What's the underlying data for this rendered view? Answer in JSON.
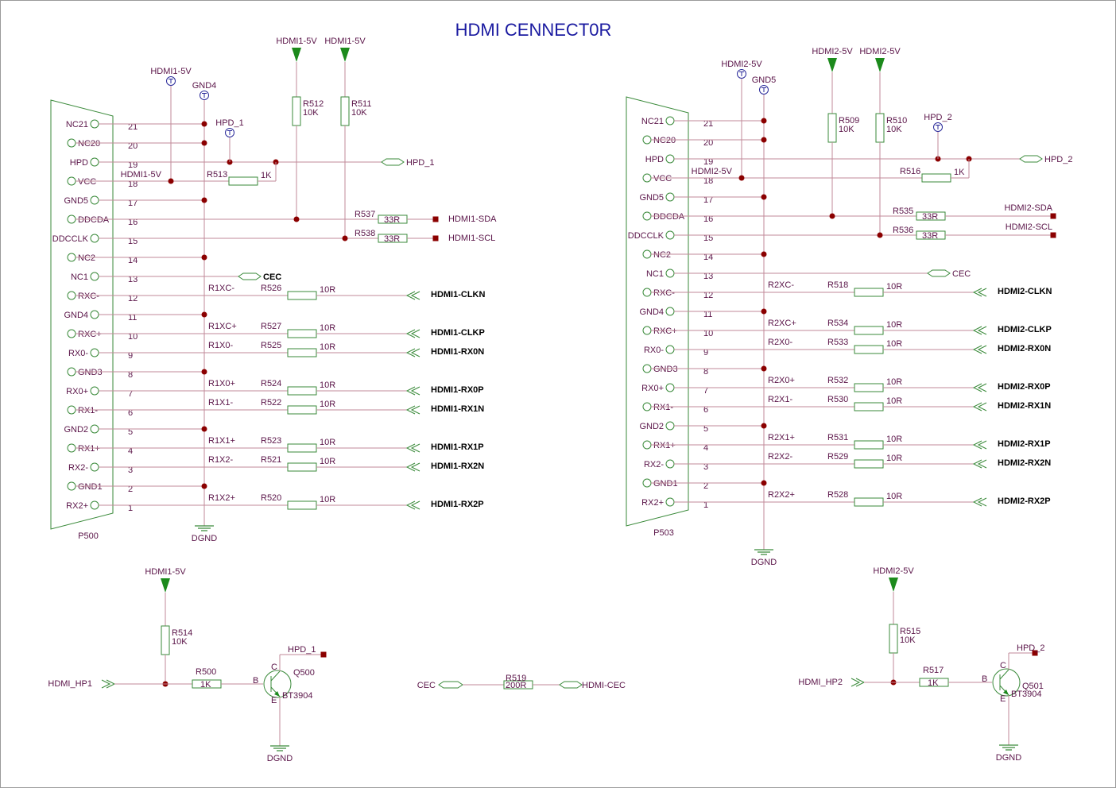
{
  "title": "HDMI CENNECT0R",
  "conn1": {
    "name": "P500",
    "pins": [
      {
        "num": "21",
        "label": "NC21",
        "net": ""
      },
      {
        "num": "20",
        "label": "NC20",
        "net": ""
      },
      {
        "num": "19",
        "label": "HPD",
        "net": ""
      },
      {
        "num": "18",
        "label": "VCC",
        "net": "HDMI1-5V"
      },
      {
        "num": "17",
        "label": "GND5",
        "net": ""
      },
      {
        "num": "16",
        "label": "DDCDA",
        "net": ""
      },
      {
        "num": "15",
        "label": "DDCCLK",
        "net": ""
      },
      {
        "num": "14",
        "label": "NC2",
        "net": ""
      },
      {
        "num": "13",
        "label": "NC1",
        "net": ""
      },
      {
        "num": "12",
        "label": "RXC-",
        "net": "R1XC-"
      },
      {
        "num": "11",
        "label": "GND4",
        "net": ""
      },
      {
        "num": "10",
        "label": "RXC+",
        "net": "R1XC+"
      },
      {
        "num": "9",
        "label": "RX0-",
        "net": "R1X0-"
      },
      {
        "num": "8",
        "label": "GND3",
        "net": ""
      },
      {
        "num": "7",
        "label": "RX0+",
        "net": "R1X0+"
      },
      {
        "num": "6",
        "label": "RX1-",
        "net": "R1X1-"
      },
      {
        "num": "5",
        "label": "GND2",
        "net": ""
      },
      {
        "num": "4",
        "label": "RX1+",
        "net": "R1X1+"
      },
      {
        "num": "3",
        "label": "RX2-",
        "net": "R1X2-"
      },
      {
        "num": "2",
        "label": "GND1",
        "net": ""
      },
      {
        "num": "1",
        "label": "RX2+",
        "net": "R1X2+"
      }
    ],
    "series": [
      {
        "ref": "R526",
        "val": "10R",
        "sig": "HDMI1-CLKN"
      },
      {
        "ref": "R527",
        "val": "10R",
        "sig": "HDMI1-CLKP"
      },
      {
        "ref": "R525",
        "val": "10R",
        "sig": "HDMI1-RX0N"
      },
      {
        "ref": "R524",
        "val": "10R",
        "sig": "HDMI1-RX0P"
      },
      {
        "ref": "R522",
        "val": "10R",
        "sig": "HDMI1-RX1N"
      },
      {
        "ref": "R523",
        "val": "10R",
        "sig": "HDMI1-RX1P"
      },
      {
        "ref": "R521",
        "val": "10R",
        "sig": "HDMI1-RX2N"
      },
      {
        "ref": "R520",
        "val": "10R",
        "sig": "HDMI1-RX2P"
      }
    ],
    "pwr_a": "HDMI1-5V",
    "pwr_b": "HDMI1-5V",
    "pwr_tp": "HDMI1-5V",
    "gnd_tp": "GND4",
    "hpd_tp": "HPD_1",
    "r_pull_a": {
      "ref": "R512",
      "val": "10K"
    },
    "r_pull_b": {
      "ref": "R511",
      "val": "10K"
    },
    "r_hpd": {
      "ref": "R513",
      "val": "1K"
    },
    "r_sda": {
      "ref": "R537",
      "val": "33R",
      "sig": "HDMI1-SDA"
    },
    "r_scl": {
      "ref": "R538",
      "val": "33R",
      "sig": "HDMI1-SCL"
    },
    "hpd_out": "HPD_1",
    "cec": "CEC",
    "dgnd": "DGND"
  },
  "conn2": {
    "name": "P503",
    "pins": [
      {
        "num": "21",
        "label": "NC21",
        "net": ""
      },
      {
        "num": "20",
        "label": "NC20",
        "net": ""
      },
      {
        "num": "19",
        "label": "HPD",
        "net": ""
      },
      {
        "num": "18",
        "label": "VCC",
        "net": "HDMI2-5V"
      },
      {
        "num": "17",
        "label": "GND5",
        "net": ""
      },
      {
        "num": "16",
        "label": "DDCDA",
        "net": ""
      },
      {
        "num": "15",
        "label": "DDCCLK",
        "net": ""
      },
      {
        "num": "14",
        "label": "NC2",
        "net": ""
      },
      {
        "num": "13",
        "label": "NC1",
        "net": ""
      },
      {
        "num": "12",
        "label": "RXC-",
        "net": "R2XC-"
      },
      {
        "num": "11",
        "label": "GND4",
        "net": ""
      },
      {
        "num": "10",
        "label": "RXC+",
        "net": "R2XC+"
      },
      {
        "num": "9",
        "label": "RX0-",
        "net": "R2X0-"
      },
      {
        "num": "8",
        "label": "GND3",
        "net": ""
      },
      {
        "num": "7",
        "label": "RX0+",
        "net": "R2X0+"
      },
      {
        "num": "6",
        "label": "RX1-",
        "net": "R2X1-"
      },
      {
        "num": "5",
        "label": "GND2",
        "net": ""
      },
      {
        "num": "4",
        "label": "RX1+",
        "net": "R2X1+"
      },
      {
        "num": "3",
        "label": "RX2-",
        "net": "R2X2-"
      },
      {
        "num": "2",
        "label": "GND1",
        "net": ""
      },
      {
        "num": "1",
        "label": "RX2+",
        "net": "R2X2+"
      }
    ],
    "series": [
      {
        "ref": "R518",
        "val": "10R",
        "sig": "HDMI2-CLKN"
      },
      {
        "ref": "R534",
        "val": "10R",
        "sig": "HDMI2-CLKP"
      },
      {
        "ref": "R533",
        "val": "10R",
        "sig": "HDMI2-RX0N"
      },
      {
        "ref": "R532",
        "val": "10R",
        "sig": "HDMI2-RX0P"
      },
      {
        "ref": "R530",
        "val": "10R",
        "sig": "HDMI2-RX1N"
      },
      {
        "ref": "R531",
        "val": "10R",
        "sig": "HDMI2-RX1P"
      },
      {
        "ref": "R529",
        "val": "10R",
        "sig": "HDMI2-RX2N"
      },
      {
        "ref": "R528",
        "val": "10R",
        "sig": "HDMI2-RX2P"
      }
    ],
    "pwr_a": "HDMI2-5V",
    "pwr_b": "HDMI2-5V",
    "pwr_tp": "HDMI2-5V",
    "gnd_tp": "GND5",
    "hpd_tp": "HPD_2",
    "r_pull_a": {
      "ref": "R509",
      "val": "10K"
    },
    "r_pull_b": {
      "ref": "R510",
      "val": "10K"
    },
    "r_hpd": {
      "ref": "R516",
      "val": "1K"
    },
    "r_sda": {
      "ref": "R535",
      "val": "33R",
      "sig": "HDMI2-SDA"
    },
    "r_scl": {
      "ref": "R536",
      "val": "33R",
      "sig": "HDMI2-SCL"
    },
    "hpd_out": "HPD_2",
    "cec": "CEC",
    "dgnd": "DGND"
  },
  "hp1": {
    "pwr": "HDMI1-5V",
    "r_pull": {
      "ref": "R514",
      "val": "10K"
    },
    "r_base": {
      "ref": "R500",
      "val": "1K"
    },
    "q": {
      "ref": "Q500",
      "part": "BT3904"
    },
    "in": "HDMI_HP1",
    "out": "HPD_1",
    "gnd": "DGND",
    "b": "B",
    "c": "C",
    "e": "E"
  },
  "hp2": {
    "pwr": "HDMI2-5V",
    "r_pull": {
      "ref": "R515",
      "val": "10K"
    },
    "r_base": {
      "ref": "R517",
      "val": "1K"
    },
    "q": {
      "ref": "Q501",
      "part": "BT3904"
    },
    "in": "HDMI_HP2",
    "out": "HPD_2",
    "gnd": "DGND",
    "b": "B",
    "c": "C",
    "e": "E"
  },
  "cec_link": {
    "left": "CEC",
    "r": {
      "ref": "R519",
      "val": "200R"
    },
    "right": "HDMI-CEC"
  },
  "colors": {
    "wire": "#c08a98",
    "junction": "#8b0000",
    "label": "#5a1448",
    "ground": "#3a8a3a",
    "power_arrow": "#1c8a1c",
    "title": "#1a1aa0"
  }
}
